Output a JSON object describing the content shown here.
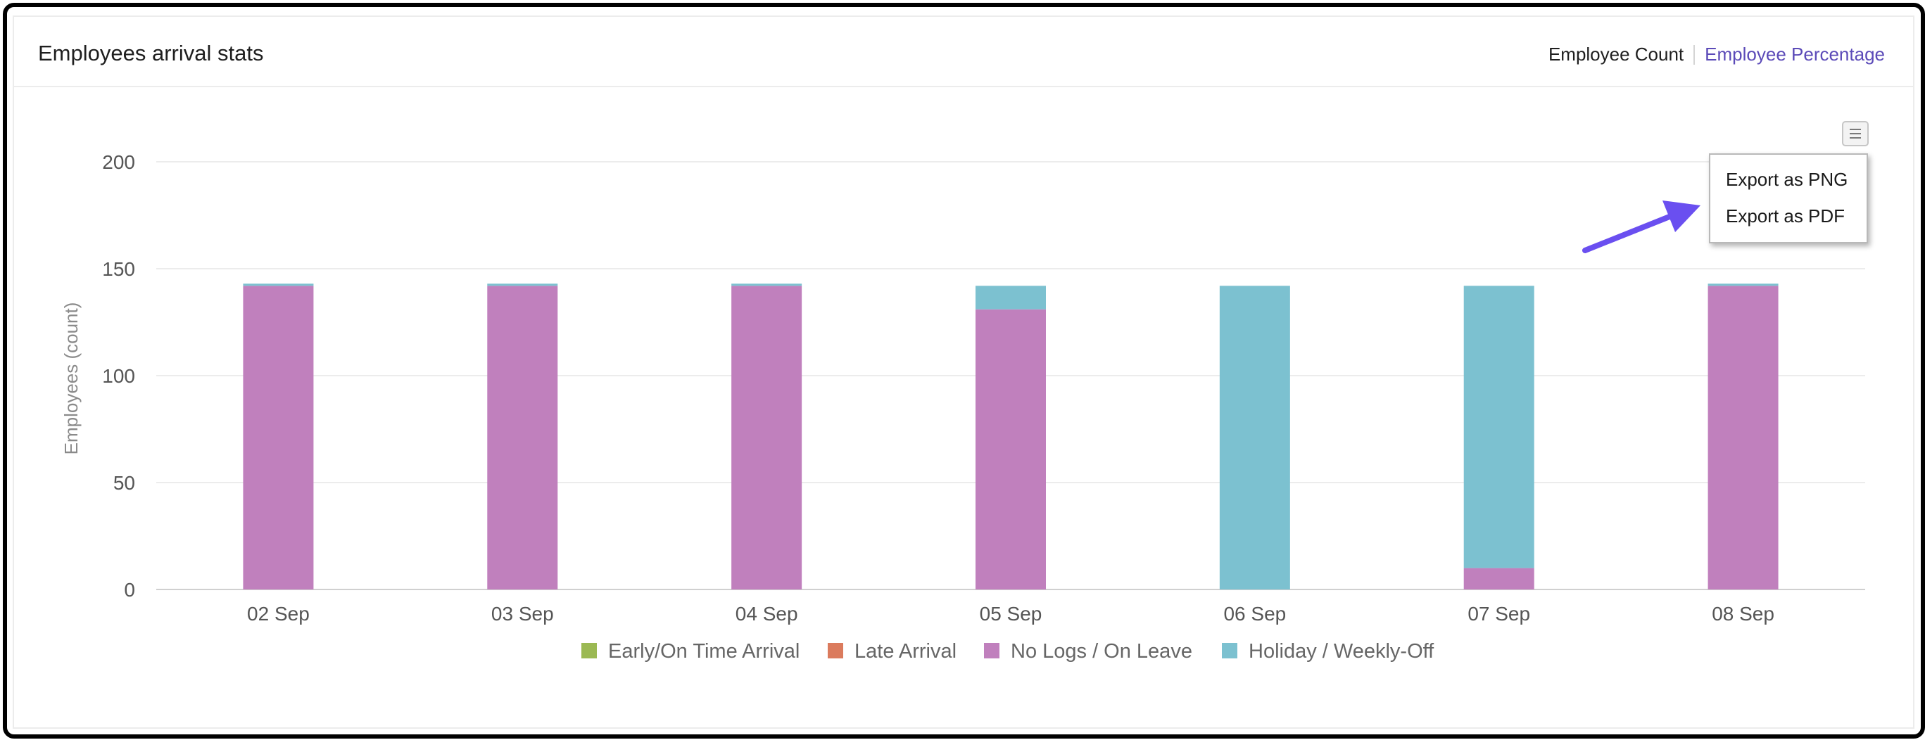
{
  "card": {
    "title": "Employees arrival stats",
    "toggle": {
      "count_label": "Employee Count",
      "percentage_label": "Employee Percentage"
    }
  },
  "export_menu": {
    "items": [
      "Export as PNG",
      "Export as PDF"
    ]
  },
  "chart_data": {
    "type": "bar",
    "stacked": true,
    "categories": [
      "02 Sep",
      "03 Sep",
      "04 Sep",
      "05 Sep",
      "06 Sep",
      "07 Sep",
      "08 Sep"
    ],
    "series": [
      {
        "name": "Early/On Time Arrival",
        "color": "#9bb953",
        "values": [
          0,
          0,
          0,
          0,
          0,
          0,
          0
        ]
      },
      {
        "name": "Late Arrival",
        "color": "#db7b5d",
        "values": [
          0,
          0,
          0,
          0,
          0,
          0,
          0
        ]
      },
      {
        "name": "No Logs / On Leave",
        "color": "#c080bd",
        "values": [
          142,
          142,
          142,
          131,
          0,
          10,
          142
        ]
      },
      {
        "name": "Holiday / Weekly-Off",
        "color": "#7cc1d0",
        "values": [
          1,
          1,
          1,
          11,
          142,
          132,
          1
        ]
      }
    ],
    "ylabel": "Employees (count)",
    "xlabel": "",
    "ylim": [
      0,
      200
    ],
    "yticks": [
      0,
      50,
      100,
      150,
      200
    ],
    "grid": true,
    "legend": "bottom-center"
  }
}
